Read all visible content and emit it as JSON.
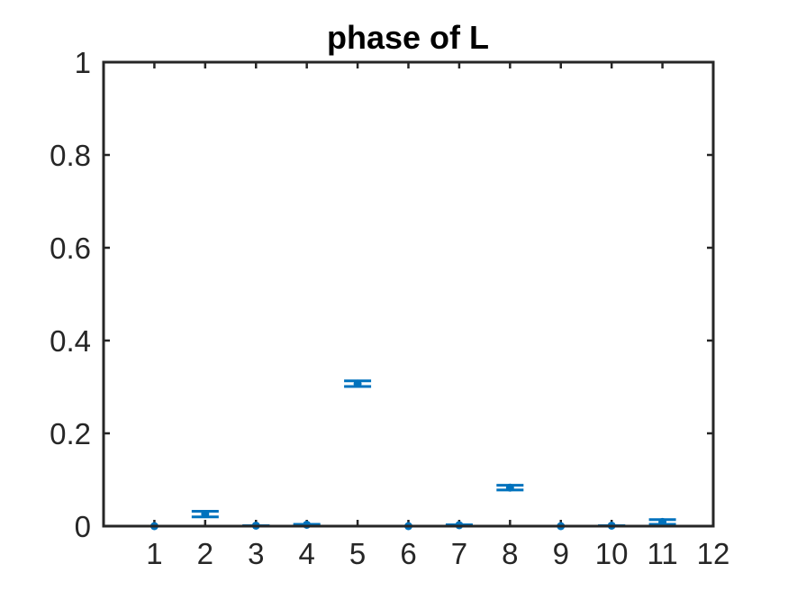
{
  "chart_data": {
    "type": "scatter",
    "title": "phase of L",
    "xlabel": "",
    "ylabel": "",
    "xlim": [
      0,
      12
    ],
    "ylim": [
      0,
      1
    ],
    "xticks": [
      1,
      2,
      3,
      4,
      5,
      6,
      7,
      8,
      9,
      10,
      11,
      12
    ],
    "xtick_labels": [
      "1",
      "2",
      "3",
      "4",
      "5",
      "6",
      "7",
      "8",
      "9",
      "10",
      "11",
      "12"
    ],
    "yticks": [
      0,
      0.2,
      0.4,
      0.6,
      0.8,
      1
    ],
    "ytick_labels": [
      "0",
      "0.2",
      "0.4",
      "0.6",
      "0.8",
      "1"
    ],
    "grid": false,
    "color": "#0072BD",
    "points": [
      {
        "x": 1,
        "y": 0.0,
        "err": 0.0
      },
      {
        "x": 2,
        "y": 0.026,
        "err": 0.006
      },
      {
        "x": 3,
        "y": 0.001,
        "err": 0.0
      },
      {
        "x": 4,
        "y": 0.003,
        "err": 0.001
      },
      {
        "x": 5,
        "y": 0.307,
        "err": 0.006
      },
      {
        "x": 6,
        "y": 0.0,
        "err": 0.0
      },
      {
        "x": 7,
        "y": 0.002,
        "err": 0.001
      },
      {
        "x": 8,
        "y": 0.083,
        "err": 0.005
      },
      {
        "x": 9,
        "y": 0.0,
        "err": 0.0
      },
      {
        "x": 10,
        "y": 0.001,
        "err": 0.0
      },
      {
        "x": 11,
        "y": 0.009,
        "err": 0.005
      }
    ]
  }
}
